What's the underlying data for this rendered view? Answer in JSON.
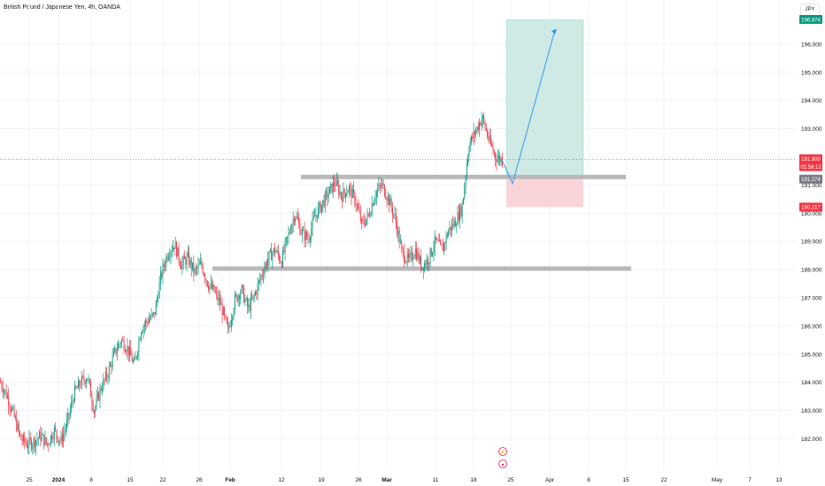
{
  "header": {
    "title": "British Pound / Japanese Yen, 4h, OANDA",
    "currency_button": "JPY"
  },
  "chart_data": {
    "type": "candlestick",
    "ylim": [
      181.8,
      197.0
    ],
    "y_ticks": [
      182,
      183,
      184,
      185,
      186,
      187,
      188,
      189,
      190,
      191,
      193,
      194,
      195,
      196
    ],
    "x_tick_labels": [
      "25",
      "2024",
      "8",
      "15",
      "22",
      "26",
      "Feb",
      "12",
      "19",
      "26",
      "Mar",
      "11",
      "18",
      "25",
      "Apr",
      "8",
      "15",
      "22",
      "May",
      "7",
      "13"
    ],
    "x_tick_labels_bold": [
      "2024",
      "Feb",
      "Mar"
    ],
    "price_labels": {
      "take_profit": "196.874",
      "current": "191.900",
      "countdown": "01:58:12",
      "entry": "191.274",
      "stop": "190.217"
    },
    "levels": {
      "resistance": 191.27,
      "support": 188.02,
      "current": 191.9,
      "take_profit": 196.874,
      "stop": 190.217
    },
    "close_path": [
      [
        0,
        184.0
      ],
      [
        1,
        183.5
      ],
      [
        2,
        182.8
      ],
      [
        3,
        182.0
      ],
      [
        4,
        181.8
      ],
      [
        5,
        181.9
      ],
      [
        6,
        182.1
      ],
      [
        7,
        181.8
      ],
      [
        8,
        182.3
      ],
      [
        9,
        181.9
      ],
      [
        10,
        182.6
      ],
      [
        11,
        183.6
      ],
      [
        12,
        184.0
      ],
      [
        13,
        184.2
      ],
      [
        14,
        183.0
      ],
      [
        15,
        183.8
      ],
      [
        16,
        184.3
      ],
      [
        17,
        185.0
      ],
      [
        18,
        185.5
      ],
      [
        19,
        185.2
      ],
      [
        20,
        184.6
      ],
      [
        21,
        185.9
      ],
      [
        22,
        186.2
      ],
      [
        23,
        186.4
      ],
      [
        24,
        187.8
      ],
      [
        25,
        188.6
      ],
      [
        26,
        188.9
      ],
      [
        27,
        188.2
      ],
      [
        28,
        188.4
      ],
      [
        29,
        187.9
      ],
      [
        30,
        188.2
      ],
      [
        31,
        187.5
      ],
      [
        32,
        187.2
      ],
      [
        33,
        186.7
      ],
      [
        34,
        185.8
      ],
      [
        35,
        186.9
      ],
      [
        36,
        187.3
      ],
      [
        37,
        186.6
      ],
      [
        38,
        187.1
      ],
      [
        39,
        187.8
      ],
      [
        40,
        188.4
      ],
      [
        41,
        188.7
      ],
      [
        42,
        188.3
      ],
      [
        43,
        189.2
      ],
      [
        44,
        190.0
      ],
      [
        45,
        189.3
      ],
      [
        46,
        189.1
      ],
      [
        47,
        189.9
      ],
      [
        48,
        190.3
      ],
      [
        49,
        190.7
      ],
      [
        50,
        191.1
      ],
      [
        51,
        190.6
      ],
      [
        52,
        190.9
      ],
      [
        53,
        190.5
      ],
      [
        54,
        189.6
      ],
      [
        55,
        189.9
      ],
      [
        56,
        190.7
      ],
      [
        57,
        191.0
      ],
      [
        58,
        190.5
      ],
      [
        59,
        189.8
      ],
      [
        60,
        188.6
      ],
      [
        61,
        188.3
      ],
      [
        62,
        188.7
      ],
      [
        63,
        188.1
      ],
      [
        64,
        188.4
      ],
      [
        65,
        189.0
      ],
      [
        66,
        188.7
      ],
      [
        67,
        189.4
      ],
      [
        68,
        189.7
      ],
      [
        69,
        190.2
      ],
      [
        70,
        192.4
      ],
      [
        71,
        192.9
      ],
      [
        72,
        193.4
      ],
      [
        73,
        192.6
      ],
      [
        74,
        192.0
      ],
      [
        75,
        191.9
      ]
    ],
    "projection": {
      "from_price": 191.9,
      "dip_price": 191.05,
      "target_price": 196.5
    },
    "events": [
      "dividend",
      "earnings"
    ]
  },
  "colors": {
    "up": "#089981",
    "down": "#f23645",
    "grid": "#f0f3fa",
    "axis_text": "#131722",
    "tp_zone": "#cfe9e4",
    "sl_zone": "#f9d5da",
    "level_bar": "#b8b8b8",
    "projection": "#2196f3",
    "current_line": "#f23645",
    "event": "#e91e63"
  }
}
